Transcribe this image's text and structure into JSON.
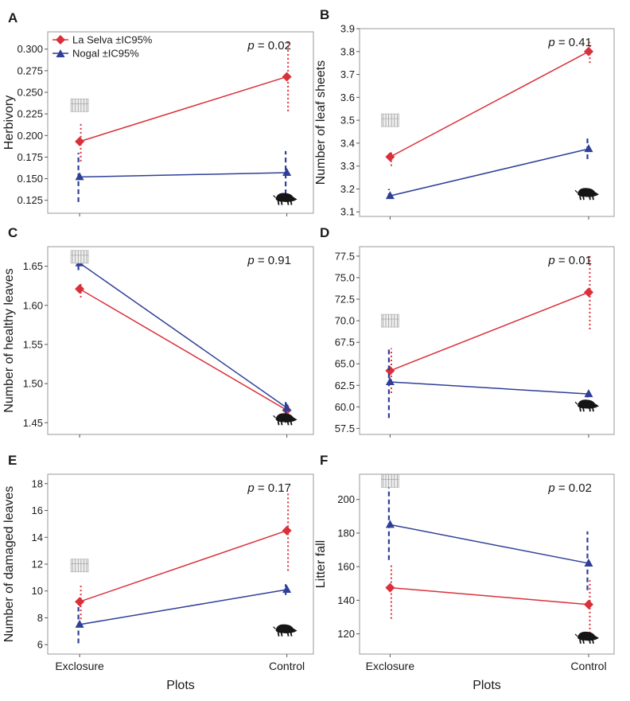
{
  "figure": {
    "x_tick_labels": [
      "Exclosure",
      "Control"
    ],
    "x_axis_label": "Plots",
    "legend": [
      {
        "label": "La Selva ±IC95%",
        "color": "#d9303a",
        "marker": "diamond"
      },
      {
        "label": "Nogal ±IC95%",
        "color": "#2f3f97",
        "marker": "triangle"
      }
    ],
    "colors": {
      "la_selva": "#d9303a",
      "nogal": "#2f3f97",
      "frame": "#9a9a9a",
      "text": "#1a1a1a"
    }
  },
  "chart_data": [
    {
      "panel": "A",
      "type": "line",
      "ylabel": "Herbivory",
      "p_value": "p = 0.02",
      "categories": [
        "Exclosure",
        "Control"
      ],
      "ylim": [
        0.11,
        0.32
      ],
      "yticks": [
        0.125,
        0.15,
        0.175,
        0.2,
        0.225,
        0.25,
        0.275,
        0.3
      ],
      "ytick_labels": [
        "0.125",
        "0.150",
        "0.175",
        "0.200",
        "0.225",
        "0.250",
        "0.275",
        "0.300"
      ],
      "show_x_labels": false,
      "series": [
        {
          "name": "La Selva ±IC95%",
          "values": [
            0.193,
            0.268
          ],
          "ci_low": [
            0.17,
            0.228
          ],
          "ci_high": [
            0.216,
            0.31
          ]
        },
        {
          "name": "Nogal ±IC95%",
          "values": [
            0.152,
            0.157
          ],
          "ci_low": [
            0.123,
            0.132
          ],
          "ci_high": [
            0.18,
            0.182
          ]
        }
      ],
      "icons": {
        "exclosure_y": 0.235,
        "boar_y": 0.127
      }
    },
    {
      "panel": "B",
      "type": "line",
      "ylabel": "Number of leaf sheets",
      "p_value": "p = 0.41",
      "categories": [
        "Exclosure",
        "Control"
      ],
      "ylim": [
        3.08,
        3.9
      ],
      "yticks": [
        3.1,
        3.2,
        3.3,
        3.4,
        3.5,
        3.6,
        3.7,
        3.8,
        3.9
      ],
      "ytick_labels": [
        "3.1",
        "3.2",
        "3.3",
        "3.4",
        "3.5",
        "3.6",
        "3.7",
        "3.8",
        "3.9"
      ],
      "show_x_labels": false,
      "series": [
        {
          "name": "La Selva ±IC95%",
          "values": [
            3.34,
            3.8
          ],
          "ci_low": [
            3.3,
            3.75
          ],
          "ci_high": [
            3.37,
            3.84
          ]
        },
        {
          "name": "Nogal ±IC95%",
          "values": [
            3.17,
            3.375
          ],
          "ci_low": [
            3.16,
            3.33
          ],
          "ci_high": [
            3.2,
            3.42
          ]
        }
      ],
      "icons": {
        "exclosure_y": 3.5,
        "boar_y": 3.18
      }
    },
    {
      "panel": "C",
      "type": "line",
      "ylabel": "Number of healthy leaves",
      "p_value": "p = 0.91",
      "categories": [
        "Exclosure",
        "Control"
      ],
      "ylim": [
        1.435,
        1.675
      ],
      "yticks": [
        1.45,
        1.5,
        1.55,
        1.6,
        1.65
      ],
      "ytick_labels": [
        "1.45",
        "1.50",
        "1.55",
        "1.60",
        "1.65"
      ],
      "show_x_labels": false,
      "series": [
        {
          "name": "La Selva ±IC95%",
          "values": [
            1.621,
            1.466
          ],
          "ci_low": [
            1.61,
            1.455
          ],
          "ci_high": [
            1.63,
            1.475
          ]
        },
        {
          "name": "Nogal ±IC95%",
          "values": [
            1.654,
            1.469
          ],
          "ci_low": [
            1.645,
            1.45
          ],
          "ci_high": [
            1.663,
            1.478
          ]
        }
      ],
      "icons": {
        "exclosure_y": 1.662,
        "boar_y": 1.455
      }
    },
    {
      "panel": "D",
      "type": "line",
      "ylabel": "",
      "p_value": "p = 0.01",
      "categories": [
        "Exclosure",
        "Control"
      ],
      "ylim": [
        56.8,
        78.6
      ],
      "yticks": [
        57.5,
        60,
        62.5,
        65,
        67.5,
        70,
        72.5,
        75,
        77.5
      ],
      "ytick_labels": [
        "57.5",
        "60.0",
        "62.5",
        "65.0",
        "67.5",
        "70.0",
        "72.5",
        "75.0",
        "77.5"
      ],
      "show_x_labels": false,
      "series": [
        {
          "name": "La Selva ±IC95%",
          "values": [
            64.2,
            73.3
          ],
          "ci_low": [
            61.6,
            69.0
          ],
          "ci_high": [
            66.8,
            77.5
          ]
        },
        {
          "name": "Nogal ±IC95%",
          "values": [
            62.9,
            61.5
          ],
          "ci_low": [
            58.7,
            61.1
          ],
          "ci_high": [
            67.0,
            61.9
          ]
        }
      ],
      "icons": {
        "exclosure_y": 70.0,
        "boar_y": 60.2
      }
    },
    {
      "panel": "E",
      "type": "line",
      "ylabel": "Number of damaged leaves",
      "p_value": "p = 0.17",
      "categories": [
        "Exclosure",
        "Control"
      ],
      "ylim": [
        5.3,
        18.7
      ],
      "yticks": [
        6,
        8,
        10,
        12,
        14,
        16,
        18
      ],
      "ytick_labels": [
        "6",
        "8",
        "10",
        "12",
        "14",
        "16",
        "18"
      ],
      "show_x_labels": true,
      "series": [
        {
          "name": "La Selva ±IC95%",
          "values": [
            9.2,
            14.5
          ],
          "ci_low": [
            7.9,
            11.5
          ],
          "ci_high": [
            10.5,
            17.4
          ]
        },
        {
          "name": "Nogal ±IC95%",
          "values": [
            7.5,
            10.1
          ],
          "ci_low": [
            6.1,
            9.7
          ],
          "ci_high": [
            8.8,
            10.5
          ]
        }
      ],
      "icons": {
        "exclosure_y": 11.9,
        "boar_y": 7.1
      }
    },
    {
      "panel": "F",
      "type": "line",
      "ylabel": "Litter fall",
      "p_value": "p = 0.02",
      "categories": [
        "Exclosure",
        "Control"
      ],
      "ylim": [
        108,
        215
      ],
      "yticks": [
        120,
        140,
        160,
        180,
        200
      ],
      "ytick_labels": [
        "120",
        "140",
        "160",
        "180",
        "200"
      ],
      "show_x_labels": true,
      "series": [
        {
          "name": "La Selva ±IC95%",
          "values": [
            147.5,
            137.5
          ],
          "ci_low": [
            129,
            118
          ],
          "ci_high": [
            162,
            152
          ]
        },
        {
          "name": "Nogal ±IC95%",
          "values": [
            185,
            162
          ],
          "ci_low": [
            164,
            146
          ],
          "ci_high": [
            208,
            181
          ]
        }
      ],
      "icons": {
        "exclosure_y": 211,
        "boar_y": 118
      }
    }
  ]
}
